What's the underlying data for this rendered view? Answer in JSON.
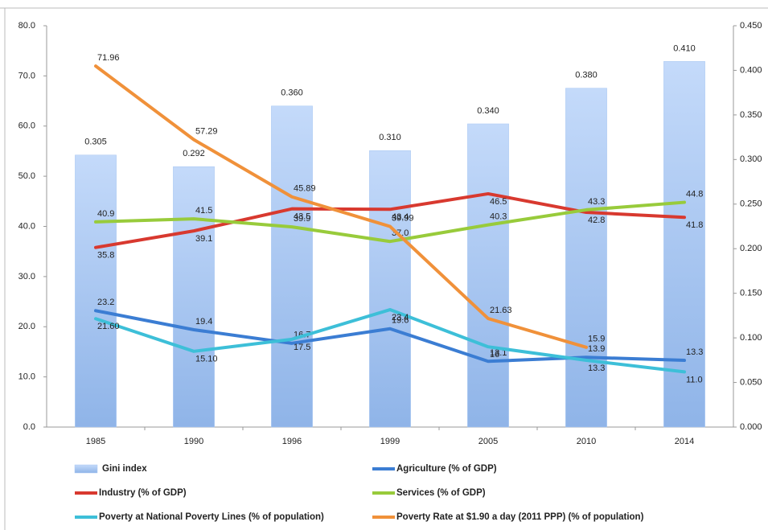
{
  "chart_data": {
    "type": "combo",
    "categories": [
      "1985",
      "1990",
      "1996",
      "1999",
      "2005",
      "2010",
      "2014"
    ],
    "ylim": [
      0,
      80
    ],
    "yticks": [
      {
        "value": 0,
        "label": "0.0"
      },
      {
        "value": 10,
        "label": "10.0"
      },
      {
        "value": 20,
        "label": "20.0"
      },
      {
        "value": 30,
        "label": "30.0"
      },
      {
        "value": 40,
        "label": "40.0"
      },
      {
        "value": 50,
        "label": "50.0"
      },
      {
        "value": 60,
        "label": "60.0"
      },
      {
        "value": 70,
        "label": "70.0"
      },
      {
        "value": 80,
        "label": "80.0"
      }
    ],
    "y2lim": [
      0,
      0.45
    ],
    "y2ticks": [
      {
        "value": 0,
        "label": "0.000"
      },
      {
        "value": 0.05,
        "label": "0.050"
      },
      {
        "value": 0.1,
        "label": "0.100"
      },
      {
        "value": 0.15,
        "label": "0.150"
      },
      {
        "value": 0.2,
        "label": "0.200"
      },
      {
        "value": 0.25,
        "label": "0.250"
      },
      {
        "value": 0.3,
        "label": "0.300"
      },
      {
        "value": 0.35,
        "label": "0.350"
      },
      {
        "value": 0.4,
        "label": "0.400"
      },
      {
        "value": 0.45,
        "label": "0.450"
      }
    ],
    "grid": false,
    "legend": "bottom",
    "series": [
      {
        "name": "Gini index",
        "type": "bar",
        "axis": "y2",
        "color": "#a9c8f2",
        "values": [
          0.305,
          0.292,
          0.36,
          0.31,
          0.34,
          0.38,
          0.41
        ],
        "value_labels": [
          "0.305",
          "0.292",
          "0.360",
          "0.310",
          "0.340",
          "0.380",
          "0.410"
        ]
      },
      {
        "name": "Agriculture (% of GDP)",
        "type": "line",
        "color": "#3b7dd3",
        "values": [
          23.2,
          19.4,
          16.7,
          19.6,
          13.1,
          13.9,
          13.3
        ]
      },
      {
        "name": "Industry (% of GDP)",
        "type": "line",
        "color": "#d8392f",
        "values": [
          35.8,
          39.1,
          43.5,
          43.4,
          46.5,
          42.8,
          41.8
        ]
      },
      {
        "name": "Services (% of GDP)",
        "type": "line",
        "color": "#98cb3b",
        "values": [
          40.9,
          41.5,
          39.9,
          37.0,
          40.3,
          43.3,
          44.8
        ],
        "value_labels": [
          "40.9",
          "41.5",
          "39.9",
          "37.0",
          "40.3",
          "43.3",
          "44.8"
        ]
      },
      {
        "name": "Poverty at National Poverty Lines (% of population)",
        "type": "line",
        "color": "#3dbfd8",
        "values": [
          21.6,
          15.1,
          17.5,
          23.4,
          16,
          13.3,
          11.0
        ],
        "value_labels": [
          "21.60",
          "15.10",
          "17.5",
          "23.4",
          "16",
          "13.3",
          "11.0"
        ]
      },
      {
        "name": "Poverty Rate at $1.90 a day (2011 PPP) (% of population)",
        "type": "line",
        "color": "#f0913a",
        "values": [
          71.96,
          57.29,
          45.89,
          39.99,
          21.63,
          15.9,
          null
        ],
        "value_labels": [
          "71.96",
          "57.29",
          "45.89",
          "39.99",
          "21.63",
          "15.9",
          null
        ]
      }
    ]
  }
}
